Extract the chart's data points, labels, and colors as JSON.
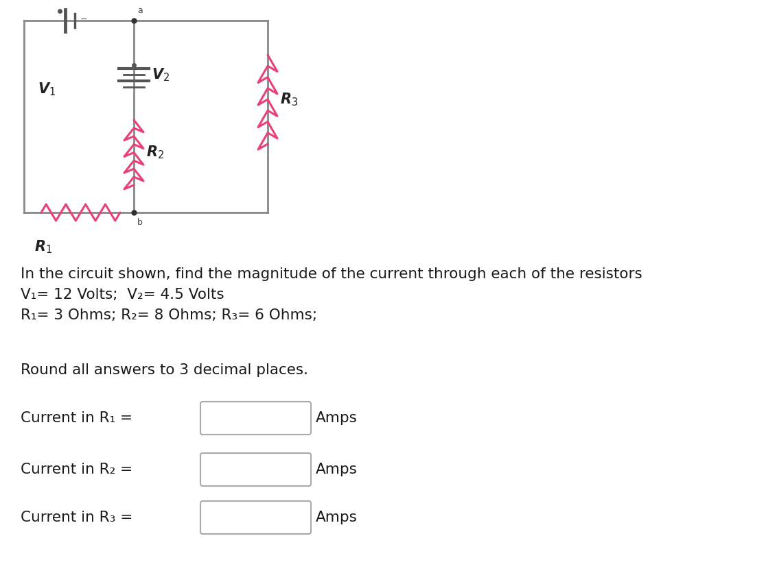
{
  "bg_color": "#ffffff",
  "circuit": {
    "line_color": "#888888",
    "resistor_color": "#e8417a",
    "battery_color": "#555555"
  },
  "text_lines": [
    "In the circuit shown, find the magnitude of the current through each of the resistors",
    "V₁= 12 Volts;  V₂= 4.5 Volts",
    "R₁= 3 Ohms; R₂= 8 Ohms; R₃= 6 Ohms;"
  ],
  "round_text": "Round all answers to 3 decimal places.",
  "current_labels": [
    "Current in R₁ =",
    "Current in R₂ =",
    "Current in R₃ ="
  ],
  "amps_label": "Amps",
  "font_size_main": 15.5,
  "font_size_circuit": 14
}
